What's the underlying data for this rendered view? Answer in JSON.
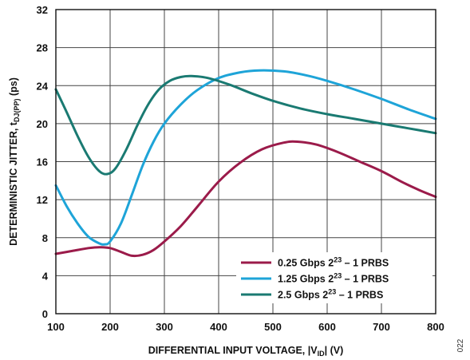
{
  "figure_id": "022",
  "chart_data": {
    "type": "line",
    "xlabel_main": "DIFFERENTIAL INPUT VOLTAGE, |V",
    "xlabel_sub": "ID",
    "xlabel_tail": "| (V)",
    "ylabel_main": "DETERMINISTIC JITTER, t",
    "ylabel_sub": "DJ(PP)",
    "ylabel_tail": " (ps)",
    "xlim": [
      100,
      800
    ],
    "ylim": [
      0,
      32
    ],
    "xticks": [
      100,
      200,
      300,
      400,
      500,
      600,
      700,
      800
    ],
    "yticks": [
      0,
      4,
      8,
      12,
      16,
      20,
      24,
      28,
      32
    ],
    "grid": true,
    "legend_position": "bottom-right",
    "series": [
      {
        "name_pre": "0.25 Gbps 2",
        "name_sup": "23",
        "name_post": " – 1 PRBS",
        "color": "#9b1b4a",
        "x": [
          100,
          130,
          160,
          180,
          200,
          220,
          240,
          260,
          280,
          300,
          330,
          360,
          400,
          440,
          480,
          520,
          545,
          580,
          620,
          660,
          700,
          740,
          770,
          800
        ],
        "y": [
          6.3,
          6.6,
          6.9,
          7.0,
          6.9,
          6.5,
          6.1,
          6.2,
          6.7,
          7.6,
          9.2,
          11.2,
          13.9,
          15.9,
          17.3,
          18.0,
          18.1,
          17.8,
          17.0,
          16.0,
          15.0,
          13.8,
          13.0,
          12.3
        ]
      },
      {
        "name_pre": "1.25 Gbps 2",
        "name_sup": "23",
        "name_post": " – 1 PRBS",
        "color": "#1ea4d8",
        "x": [
          100,
          120,
          140,
          160,
          180,
          190,
          200,
          220,
          240,
          260,
          280,
          300,
          330,
          360,
          400,
          440,
          475,
          520,
          560,
          600,
          650,
          700,
          750,
          800
        ],
        "y": [
          13.5,
          11.3,
          9.5,
          8.1,
          7.4,
          7.3,
          7.6,
          9.5,
          12.5,
          15.6,
          18.1,
          20.0,
          22.0,
          23.5,
          24.8,
          25.4,
          25.6,
          25.5,
          25.1,
          24.5,
          23.6,
          22.6,
          21.5,
          20.5
        ]
      },
      {
        "name_pre": "2.5 Gbps 2",
        "name_sup": "23",
        "name_post": " – 1 PRBS",
        "color": "#1a7a72",
        "x": [
          100,
          120,
          140,
          160,
          180,
          195,
          210,
          230,
          250,
          270,
          290,
          310,
          330,
          350,
          380,
          420,
          460,
          500,
          550,
          600,
          650,
          700,
          750,
          800
        ],
        "y": [
          23.6,
          21.2,
          18.7,
          16.5,
          15.0,
          14.7,
          15.3,
          17.3,
          19.8,
          22.0,
          23.6,
          24.5,
          24.9,
          25.0,
          24.8,
          24.1,
          23.2,
          22.4,
          21.6,
          21.0,
          20.5,
          20.0,
          19.5,
          19.0
        ]
      }
    ]
  }
}
